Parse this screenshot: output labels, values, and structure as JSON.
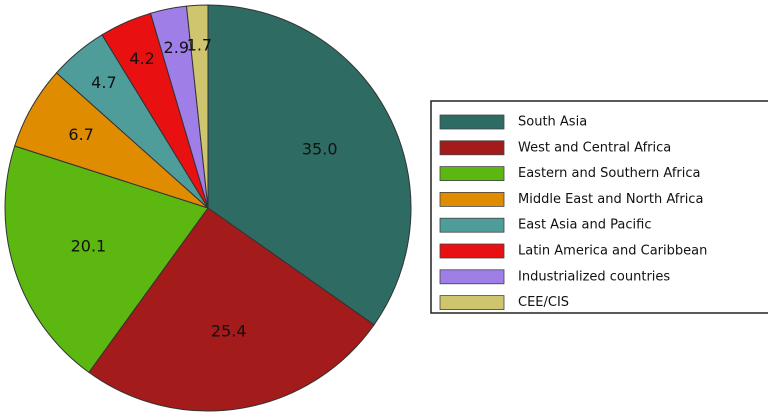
{
  "chart_data": {
    "type": "pie",
    "categories": [
      "South Asia",
      "West and Central Africa",
      "Eastern and Southern Africa",
      "Middle East and North Africa",
      "East Asia and Pacific",
      "Latin America and Caribbean",
      "Industrialized countries",
      "CEE/CIS"
    ],
    "values": [
      35,
      25.4,
      20.1,
      6.7,
      4.7,
      4.2,
      2.9,
      1.7
    ],
    "value_labels": [
      "35.0",
      "25.4",
      "20.1",
      "6.7",
      "4.7",
      "4.2",
      "2.9",
      "1.7"
    ],
    "colors": [
      "#2e6b62",
      "#a31b1b",
      "#5cb811",
      "#e08c00",
      "#4f9d9a",
      "#e81010",
      "#a07ee8",
      "#cfc56e"
    ],
    "legend": "right"
  }
}
